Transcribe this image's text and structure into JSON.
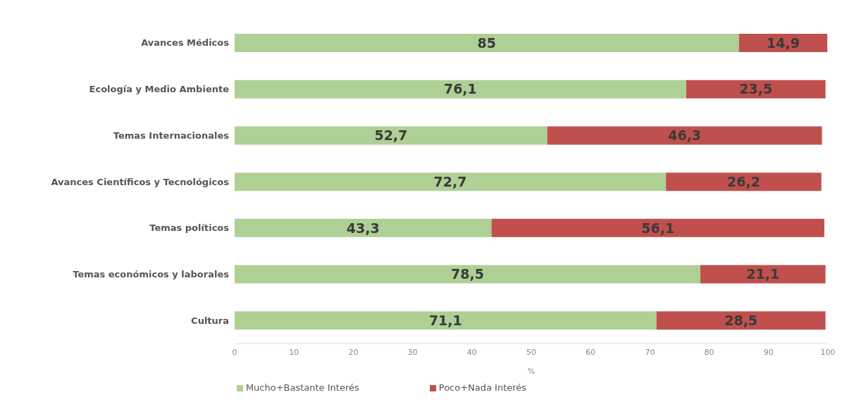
{
  "chart_data": {
    "type": "bar",
    "orientation": "horizontal",
    "stacked": true,
    "categories": [
      "Avances Médicos",
      "Ecología y Medio Ambiente",
      "Temas Internacionales",
      "Avances Científicos y Tecnológicos",
      "Temas políticos",
      "Temas económicos y laborales",
      "Cultura"
    ],
    "series": [
      {
        "name": "Mucho+Bastante Interés",
        "color": "#afd095",
        "values": [
          85,
          76.1,
          52.7,
          72.7,
          43.3,
          78.5,
          71.1
        ],
        "value_labels": [
          "85",
          "76,1",
          "52,7",
          "72,7",
          "43,3",
          "78,5",
          "71,1"
        ]
      },
      {
        "name": "Poco+Nada Interés",
        "color": "#c0504d",
        "values": [
          14.9,
          23.5,
          46.3,
          26.2,
          56.1,
          21.1,
          28.5
        ],
        "value_labels": [
          "14,9",
          "23,5",
          "46,3",
          "26,2",
          "56,1",
          "21,1",
          "28,5"
        ]
      }
    ],
    "xlim": [
      0,
      100
    ],
    "xticks": [
      0,
      10,
      20,
      30,
      40,
      50,
      60,
      70,
      80,
      90,
      100
    ],
    "xlabel": "%",
    "legend": "bottom",
    "grid": false
  }
}
